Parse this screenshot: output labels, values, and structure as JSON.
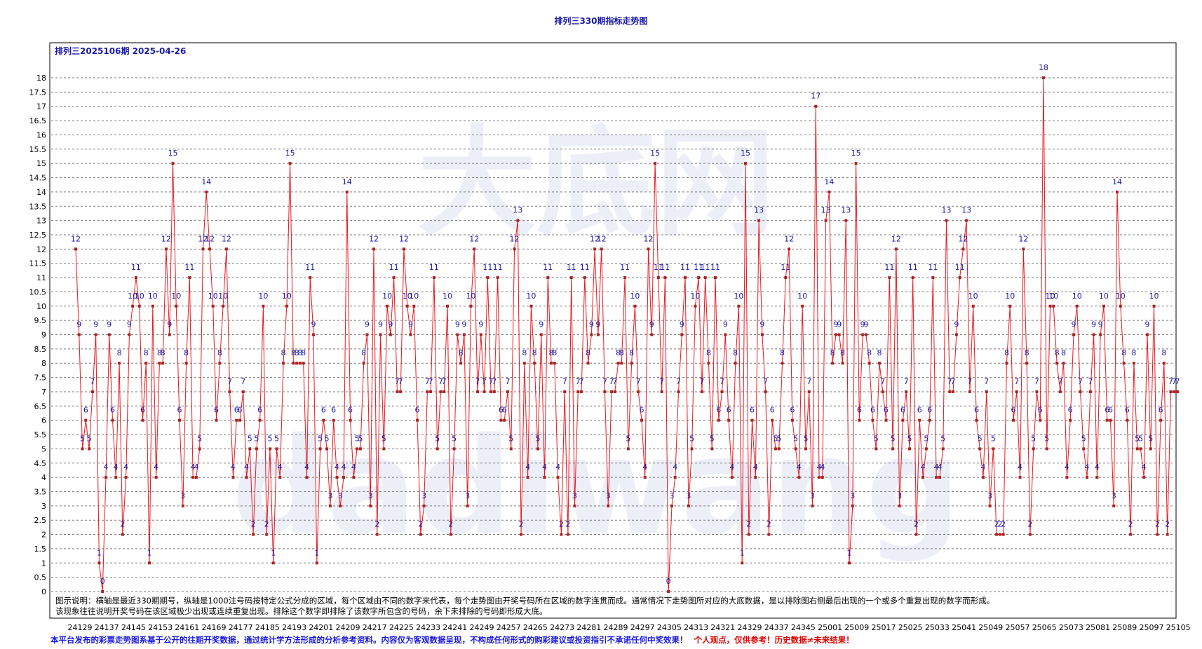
{
  "page": {
    "title": "排列三330期指标走势图",
    "subtitle": "排列三2025106期 2025-04-26",
    "note_line1": "图示说明：横轴是最近330期期号，纵轴是1000注号码按特定公式分成的区域，每个区域由不同的数字来代表，每个走势图由开奖号码所在区域的数字连贯而成。通常情况下走势图所对应的大底数据，是以排除图右侧最后出现的一个或多个重复出现的数字而形成。",
    "note_line2": "该现象往往说明开奖号码在该区域极少出现或连续重复出现。排除这个数字即排除了该数字所包含的号码，余下未排除的号码即形成大底。",
    "disclaimer_blue": "本平台发布的彩票走势图系基于公开的往期开奖数据，通过统计学方法形成的分析参考资料。内容仅为客观数据呈现，不构成任何形式的购彩建议或投资指引不承诺任何中奖效果！",
    "disclaimer_red": "个人观点，仅供参考！历史数据≠未来结果！",
    "watermark_line1": "大底网",
    "watermark_line2": "dadiwang"
  },
  "colors": {
    "line": "#e8181e",
    "marker": "#b02020",
    "label": "#1a1aa8",
    "grid": "#7a7a7a",
    "title": "#1a1aa8",
    "disclaimer_blue": "#1a1ae0",
    "disclaimer_red": "#e00000"
  },
  "chart_data": {
    "type": "line",
    "ylim": [
      0,
      18
    ],
    "y_ticks": [
      "0",
      "0.5",
      "1",
      "1.5",
      "2",
      "2.5",
      "3",
      "3.5",
      "4",
      "4.5",
      "5",
      "5.5",
      "6",
      "6.5",
      "7",
      "7.5",
      "8",
      "8.5",
      "9",
      "9.5",
      "10",
      "10.5",
      "11",
      "11.5",
      "12",
      "12.5",
      "13",
      "13.5",
      "14",
      "14.5",
      "15",
      "15.5",
      "16",
      "16.5",
      "17",
      "17.5",
      "18"
    ],
    "x_tick_labels": [
      "24129",
      "24137",
      "24145",
      "24153",
      "24161",
      "24169",
      "24177",
      "24185",
      "24193",
      "24201",
      "24209",
      "24217",
      "24225",
      "24233",
      "24241",
      "24249",
      "24257",
      "24265",
      "24273",
      "24281",
      "24289",
      "24297",
      "24305",
      "24313",
      "24321",
      "24329",
      "24337",
      "24345",
      "25001",
      "25009",
      "25017",
      "25025",
      "25033",
      "25041",
      "25049",
      "25057",
      "25065",
      "25073",
      "25081",
      "25089",
      "25097",
      "25105"
    ],
    "grid": true,
    "values": [
      12,
      9,
      5,
      6,
      5,
      7,
      9,
      1,
      0,
      4,
      9,
      6,
      4,
      8,
      2,
      4,
      9,
      10,
      11,
      10,
      6,
      8,
      1,
      10,
      4,
      8,
      8,
      12,
      9,
      15,
      10,
      6,
      3,
      8,
      11,
      4,
      4,
      5,
      12,
      14,
      12,
      10,
      6,
      8,
      10,
      12,
      7,
      4,
      6,
      6,
      7,
      4,
      5,
      2,
      5,
      6,
      10,
      2,
      5,
      1,
      5,
      4,
      8,
      10,
      15,
      8,
      8,
      8,
      8,
      4,
      11,
      9,
      1,
      5,
      6,
      5,
      3,
      6,
      4,
      3,
      4,
      14,
      6,
      4,
      5,
      5,
      8,
      9,
      3,
      12,
      2,
      9,
      5,
      10,
      9,
      11,
      7,
      7,
      12,
      10,
      9,
      10,
      6,
      2,
      3,
      7,
      7,
      11,
      5,
      7,
      7,
      10,
      2,
      5,
      9,
      8,
      9,
      3,
      10,
      12,
      7,
      9,
      7,
      11,
      7,
      7,
      11,
      6,
      6,
      7,
      5,
      12,
      13,
      2,
      8,
      4,
      10,
      8,
      5,
      9,
      4,
      11,
      8,
      8,
      4,
      2,
      7,
      2,
      11,
      3,
      7,
      7,
      11,
      8,
      9,
      12,
      9,
      12,
      7,
      3,
      7,
      7,
      8,
      8,
      11,
      5,
      8,
      10,
      7,
      6,
      4,
      12,
      9,
      15,
      11,
      7,
      11,
      0,
      3,
      4,
      7,
      9,
      11,
      3,
      5,
      10,
      11,
      7,
      11,
      8,
      5,
      11,
      6,
      7,
      9,
      6,
      4,
      8,
      10,
      1,
      15,
      2,
      6,
      4,
      13,
      9,
      7,
      2,
      6,
      5,
      5,
      8,
      11,
      12,
      6,
      5,
      4,
      10,
      5,
      7,
      3,
      17,
      4,
      4,
      13,
      14,
      8,
      9,
      9,
      8,
      13,
      1,
      3,
      15,
      6,
      9,
      9,
      8,
      6,
      5,
      8,
      7,
      6,
      11,
      5,
      12,
      3,
      6,
      7,
      5,
      11,
      2,
      6,
      4,
      5,
      6,
      11,
      4,
      4,
      5,
      13,
      7,
      7,
      9,
      11,
      12,
      13,
      7,
      10,
      6,
      5,
      4,
      7,
      3,
      5,
      2,
      2,
      2,
      8,
      10,
      6,
      7,
      4,
      12,
      8,
      2,
      5,
      7,
      6,
      18,
      5,
      10,
      10,
      8,
      7,
      8,
      4,
      6,
      9,
      10,
      7,
      5,
      4,
      7,
      9,
      4,
      9,
      10,
      6,
      6,
      3,
      14,
      10,
      8,
      6,
      2,
      8,
      5,
      5,
      4,
      9,
      5,
      10,
      2,
      6,
      8,
      2,
      7,
      7,
      7
    ]
  }
}
